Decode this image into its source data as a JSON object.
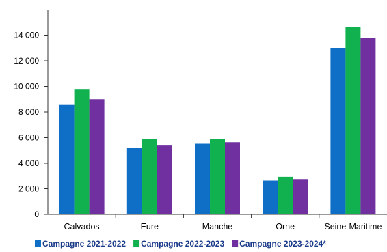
{
  "chart_data": {
    "type": "bar",
    "title": "",
    "xlabel": "",
    "ylabel": "",
    "categories": [
      "Calvados",
      "Eure",
      "Manche",
      "Orne",
      "Seine-Maritime"
    ],
    "series": [
      {
        "name": "Campagne 2021-2022",
        "color": "#0f6fc6",
        "values": [
          8550,
          5180,
          5520,
          2640,
          12960
        ]
      },
      {
        "name": "Campagne 2022-2023",
        "color": "#10b14e",
        "values": [
          9750,
          5870,
          5900,
          2940,
          14640
        ]
      },
      {
        "name": "Campagne 2023-2024*",
        "color": "#7030a0",
        "values": [
          9000,
          5380,
          5640,
          2760,
          13800
        ]
      }
    ],
    "ylim": [
      0,
      16000
    ],
    "yticks": [
      0,
      2000,
      4000,
      6000,
      8000,
      10000,
      12000,
      14000
    ],
    "ytick_labels": [
      "0",
      "2 000",
      "4 000",
      "6 000",
      "8 000",
      "10 000",
      "12 000",
      "14 000"
    ],
    "grid": false,
    "legend_position": "bottom"
  }
}
